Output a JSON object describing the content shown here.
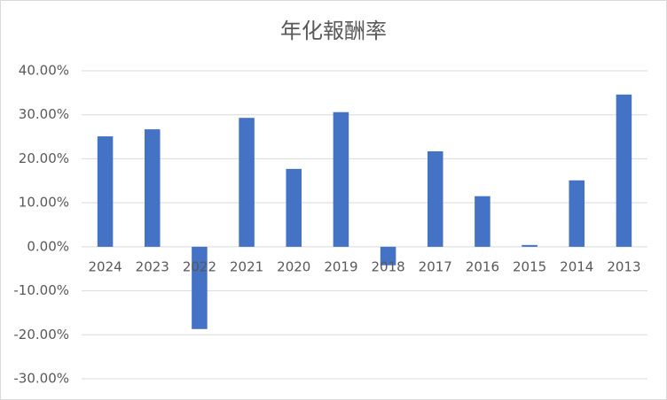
{
  "chart_data": {
    "type": "bar",
    "title": "年化報酬率",
    "categories": [
      "2024",
      "2023",
      "2022",
      "2021",
      "2020",
      "2019",
      "2018",
      "2017",
      "2016",
      "2015",
      "2014",
      "2013"
    ],
    "values": [
      25.1,
      26.7,
      -18.7,
      29.3,
      17.7,
      30.6,
      -4.2,
      21.7,
      11.5,
      0.4,
      15.1,
      34.6
    ],
    "color": "#4472c4",
    "ylim": [
      -30,
      40
    ],
    "yticks": [
      {
        "value": -30,
        "label": "-30.00%"
      },
      {
        "value": -20,
        "label": "-20.00%"
      },
      {
        "value": -10,
        "label": "-10.00%"
      },
      {
        "value": 0,
        "label": "0.00%"
      },
      {
        "value": 10,
        "label": "10.00%"
      },
      {
        "value": 20,
        "label": "20.00%"
      },
      {
        "value": 30,
        "label": "30.00%"
      },
      {
        "value": 40,
        "label": "40.00%"
      }
    ],
    "grid": true
  }
}
